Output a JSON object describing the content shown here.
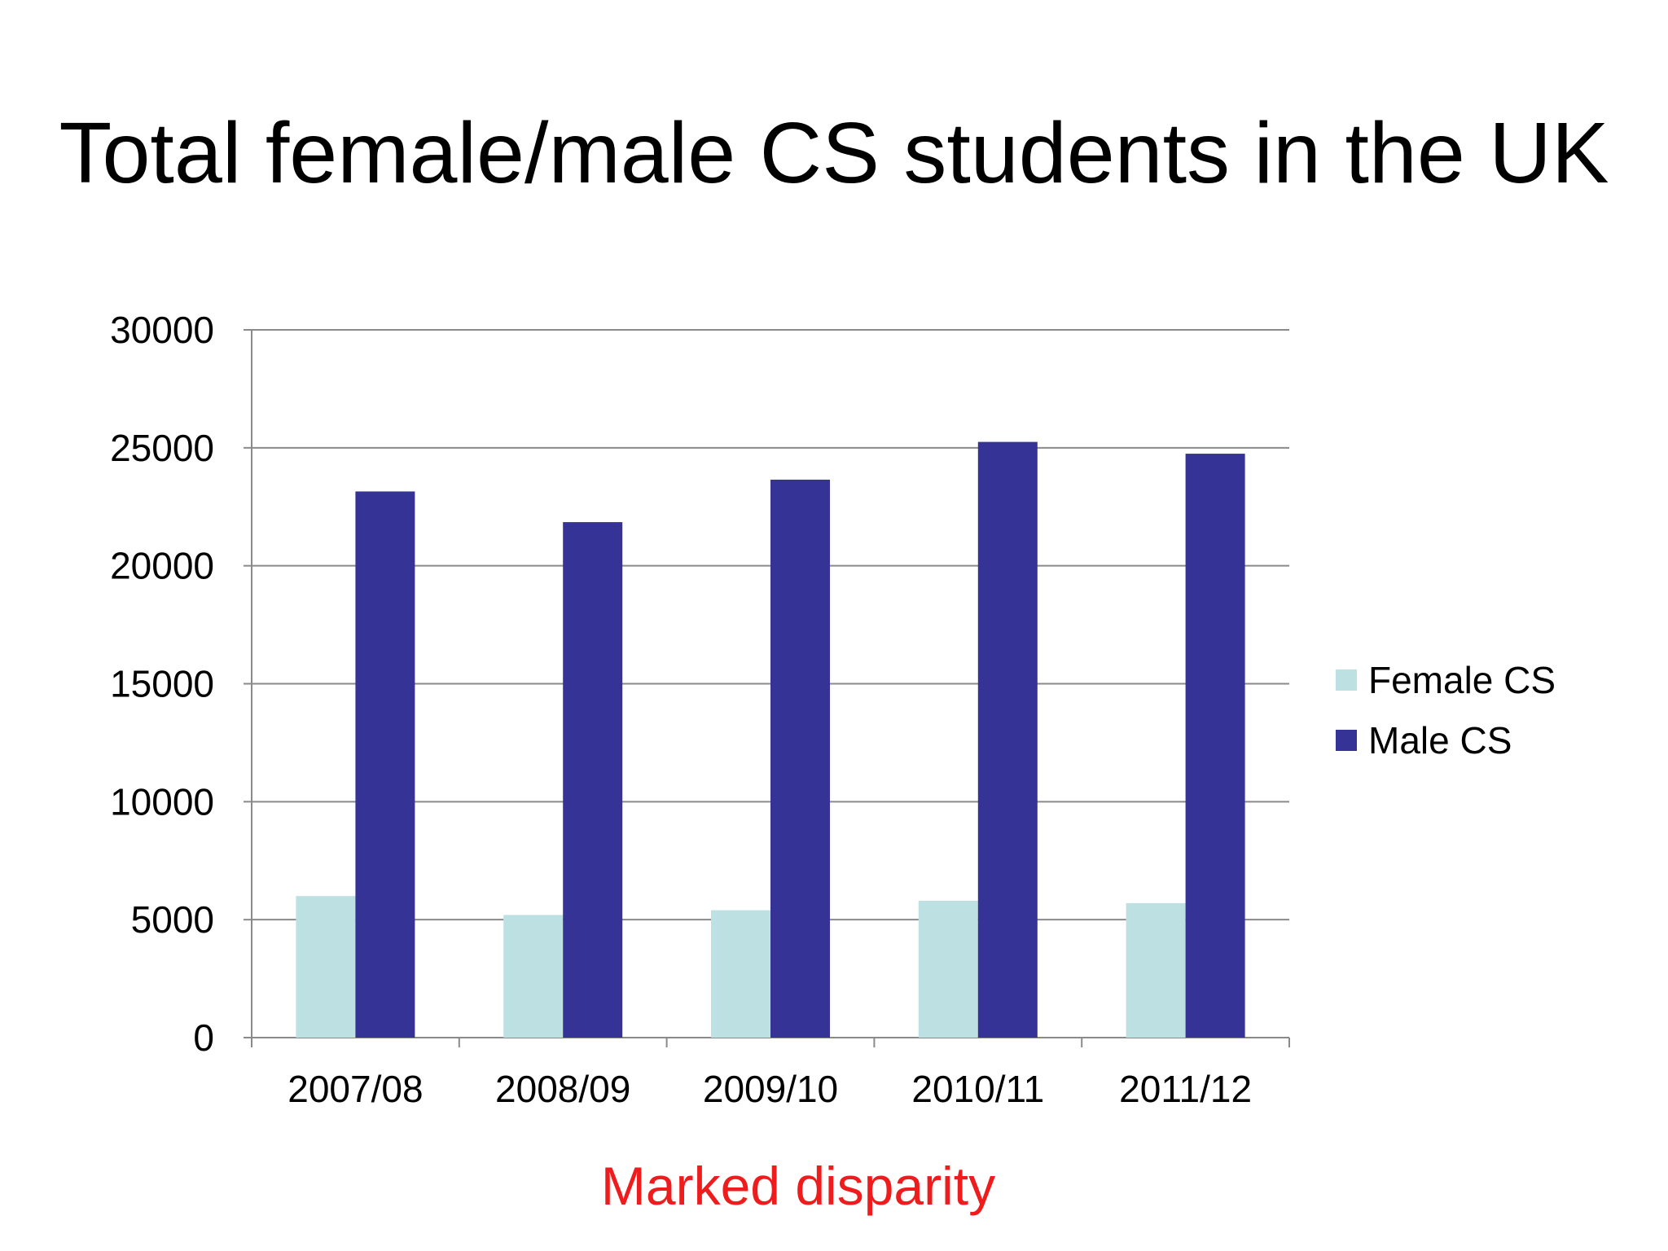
{
  "chart_data": {
    "type": "bar",
    "title": "Total female/male CS students in the UK",
    "categories": [
      "2007/08",
      "2008/09",
      "2009/10",
      "2010/11",
      "2011/12"
    ],
    "series": [
      {
        "name": "Female CS",
        "color": "#bde0e3",
        "values": [
          6000,
          5200,
          5400,
          5800,
          5700
        ]
      },
      {
        "name": "Male CS",
        "color": "#353496",
        "values": [
          23150,
          21850,
          23650,
          25250,
          24750
        ]
      }
    ],
    "yticks": [
      "0",
      "5000",
      "10000",
      "15000",
      "20000",
      "25000",
      "30000"
    ],
    "ylim": [
      0,
      30000
    ],
    "grid": true,
    "legend": "right",
    "xlabel": "",
    "ylabel": ""
  },
  "caption": {
    "text": "Marked disparity",
    "color": "#ee1c1c"
  },
  "colors": {
    "gridline": "#8a8a8a",
    "axis": "#8a8a8a"
  }
}
